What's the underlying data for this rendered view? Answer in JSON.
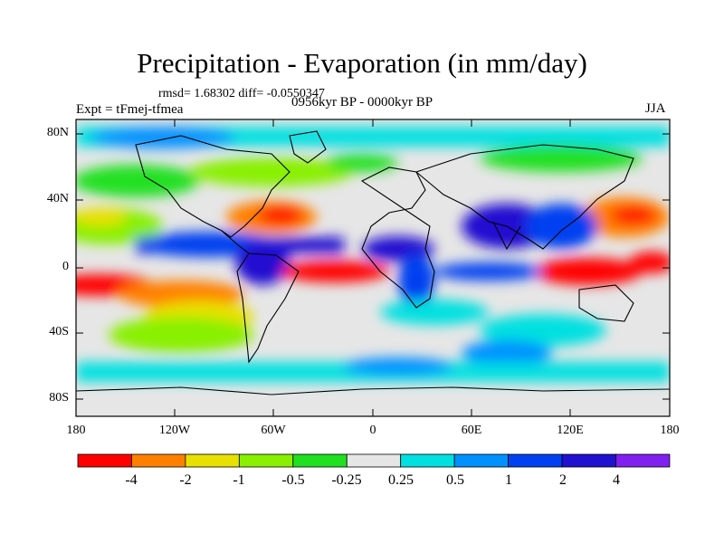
{
  "title": "Precipitation - Evaporation (in mm/day)",
  "stats": "rmsd= 1.68302  diff= -0.0550347",
  "experiment": "Expt = tFmej-tfmea",
  "period": "0956kyr BP - 0000kyr BP",
  "season": "JJA",
  "lat_labels": [
    "80N",
    "40N",
    "0",
    "40S",
    "80S"
  ],
  "lon_labels": [
    "180",
    "120W",
    "60W",
    "0",
    "60E",
    "120E",
    "180"
  ],
  "colorbar": {
    "colors": [
      "#ff0000",
      "#ff8000",
      "#e8e000",
      "#88f000",
      "#20e020",
      "#e6e6e6",
      "#00e0e0",
      "#0090ff",
      "#0040f0",
      "#2010d0",
      "#8020f0"
    ],
    "labels": [
      "-4",
      "-2",
      "-1",
      "-0.5",
      "-0.25",
      "0.25",
      "0.5",
      "1",
      "2",
      "4"
    ]
  },
  "legend_colors": {
    "land_outline": "#000000",
    "neutral": "#e6e6e6"
  }
}
